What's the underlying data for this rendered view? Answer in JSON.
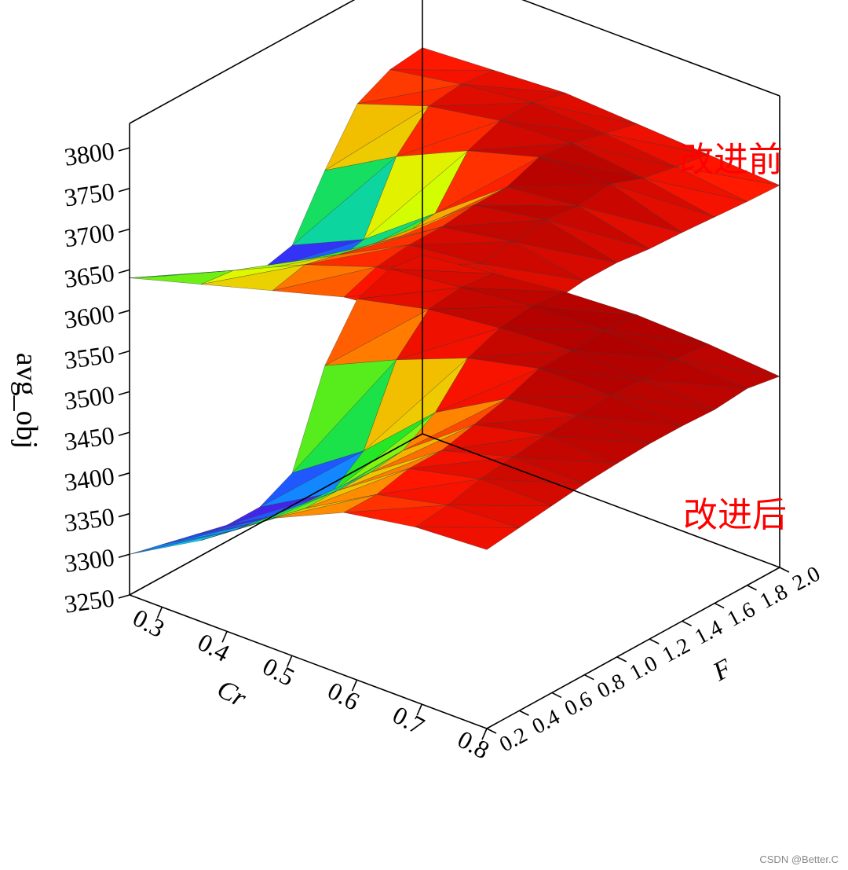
{
  "chart_data": {
    "type": "surface3d",
    "zlabel": "avg_obj",
    "xlabel": "Cr",
    "ylabel": "F",
    "z_ticks": [
      "3250",
      "3300",
      "3350",
      "3400",
      "3450",
      "3500",
      "3550",
      "3600",
      "3650",
      "3700",
      "3750",
      "3800"
    ],
    "cr_ticks": [
      "0.3",
      "0.4",
      "0.5",
      "0.6",
      "0.7",
      "0.8"
    ],
    "f_ticks": [
      "0.2",
      "0.4",
      "0.6",
      "0.8",
      "1.0",
      "1.2",
      "1.4",
      "1.6",
      "1.8",
      "2.0"
    ],
    "xlim": [
      0.25,
      0.8
    ],
    "ylim": [
      0.2,
      2.0
    ],
    "zlim": [
      3250,
      3830
    ],
    "surfaces": [
      {
        "annotation": "改进前",
        "z": [
          [
            3640,
            3665,
            3690,
            3715,
            3725,
            3720
          ],
          [
            3620,
            3660,
            3700,
            3730,
            3735,
            3725
          ],
          [
            3600,
            3640,
            3690,
            3735,
            3745,
            3730
          ],
          [
            3570,
            3620,
            3680,
            3735,
            3750,
            3735
          ],
          [
            3560,
            3600,
            3670,
            3740,
            3755,
            3735
          ],
          [
            3570,
            3610,
            3675,
            3740,
            3750,
            3730
          ],
          [
            3640,
            3690,
            3730,
            3755,
            3755,
            3728
          ],
          [
            3700,
            3730,
            3745,
            3750,
            3740,
            3725
          ],
          [
            3720,
            3735,
            3745,
            3740,
            3732,
            3722
          ],
          [
            3725,
            3730,
            3735,
            3730,
            3725,
            3720
          ]
        ]
      },
      {
        "annotation": "改进后",
        "z": [
          [
            3300,
            3350,
            3410,
            3450,
            3465,
            3470
          ],
          [
            3290,
            3340,
            3400,
            3450,
            3470,
            3475
          ],
          [
            3280,
            3330,
            3400,
            3460,
            3480,
            3480
          ],
          [
            3270,
            3320,
            3400,
            3460,
            3485,
            3485
          ],
          [
            3270,
            3320,
            3405,
            3470,
            3490,
            3488
          ],
          [
            3290,
            3350,
            3430,
            3480,
            3492,
            3490
          ],
          [
            3400,
            3440,
            3475,
            3495,
            3495,
            3490
          ],
          [
            3460,
            3480,
            3490,
            3495,
            3492,
            3488
          ],
          [
            3475,
            3485,
            3495,
            3498,
            3495,
            3492
          ],
          [
            3470,
            3480,
            3490,
            3495,
            3492,
            3485
          ]
        ]
      }
    ],
    "colormap": "rainbow"
  },
  "watermark": "CSDN @Better.C"
}
